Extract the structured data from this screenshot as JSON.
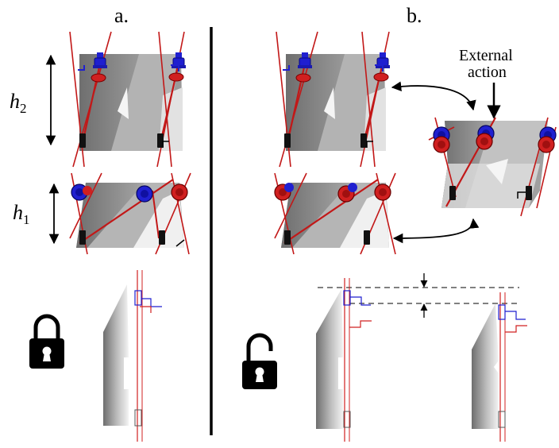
{
  "labels": {
    "panel_a": "a.",
    "panel_b": "b.",
    "h2_var": "h",
    "h2_sub": "2",
    "h1_var": "h",
    "h1_sub": "1",
    "external_line1": "External",
    "external_line2": "action"
  },
  "colors": {
    "dark_face": "#7d7d7d",
    "mid_face": "#a8a8a8",
    "light_face": "#d4d4d4",
    "pale_face": "#ececec",
    "rod": "#c21818",
    "blue_part": "#1f1fd0",
    "red_part": "#d02020",
    "ink": "#000000"
  },
  "icons": [
    "lock-closed-icon",
    "lock-open-icon"
  ]
}
